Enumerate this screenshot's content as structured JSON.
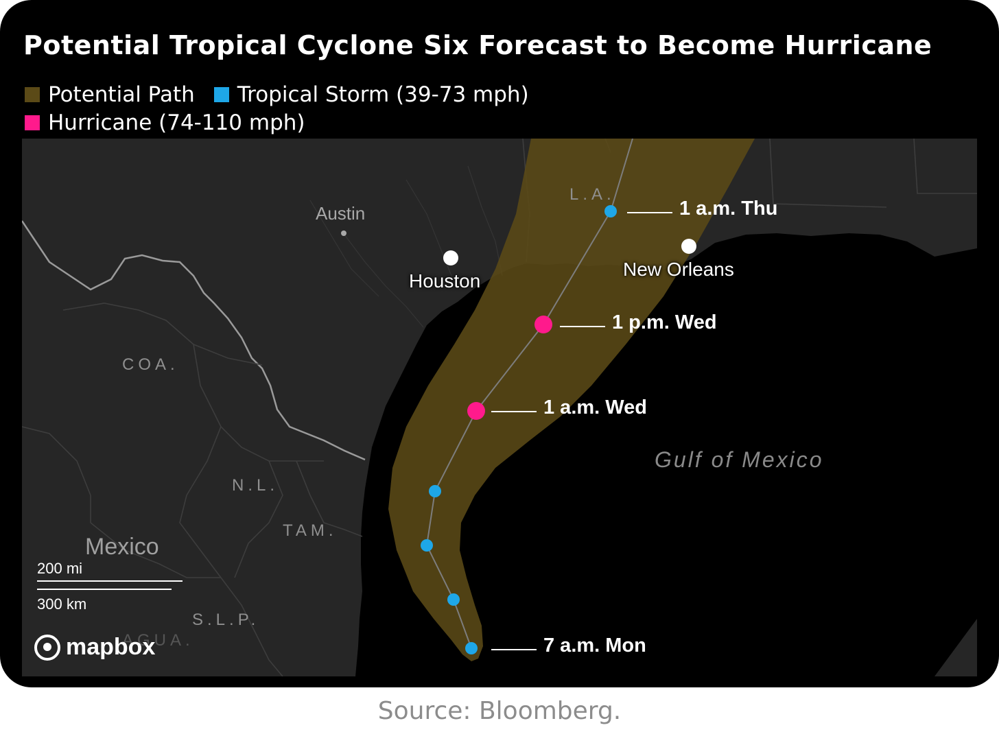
{
  "title": "Potential Tropical Cyclone Six Forecast to Become Hurricane",
  "legend": [
    {
      "label": "Potential Path",
      "color": "#5b4a17"
    },
    {
      "label": "Tropical Storm (39-73 mph)",
      "color": "#1ea7e8"
    },
    {
      "label": "Hurricane (74-110 mph)",
      "color": "#ff1a8c"
    }
  ],
  "map": {
    "cities": [
      {
        "name": "Austin"
      },
      {
        "name": "Houston"
      },
      {
        "name": "New Orleans"
      }
    ],
    "regions": [
      "L.A.",
      "COA.",
      "N.L.",
      "TAM.",
      "S.L.P.",
      "AGUA."
    ],
    "country": "Mexico",
    "water": "Gulf of Mexico",
    "forecast_points": [
      {
        "time": "7 a.m. Mon",
        "category": "Tropical Storm"
      },
      {
        "time": "",
        "category": "Tropical Storm"
      },
      {
        "time": "",
        "category": "Tropical Storm"
      },
      {
        "time": "",
        "category": "Tropical Storm"
      },
      {
        "time": "1 a.m. Wed",
        "category": "Hurricane"
      },
      {
        "time": "1 p.m. Wed",
        "category": "Hurricane"
      },
      {
        "time": "1 a.m. Thu",
        "category": "Tropical Storm"
      }
    ],
    "scale": {
      "imperial": "200 mi",
      "metric": "300 km"
    },
    "attribution": "mapbox"
  },
  "source": "Source: Bloomberg."
}
